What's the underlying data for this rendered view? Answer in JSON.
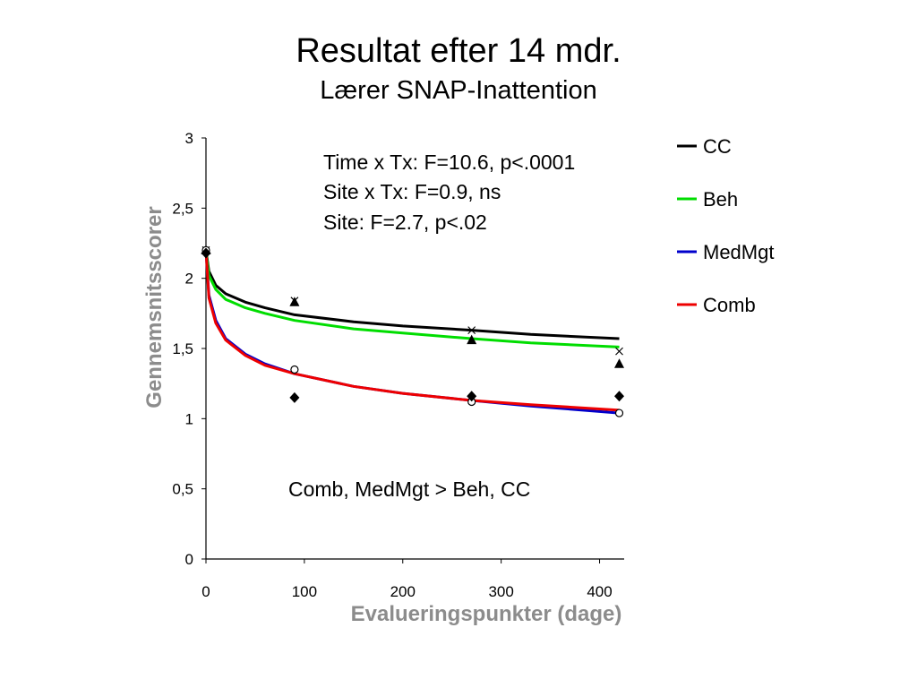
{
  "title": "Resultat efter 14 mdr.",
  "subtitle": "Lærer SNAP-Inattention",
  "chart_data": {
    "type": "line",
    "xlabel": "Evalueringspunkter (dage)",
    "ylabel": "Gennemsnitsscorer",
    "xlim": [
      0,
      425
    ],
    "ylim": [
      0,
      3
    ],
    "x_ticks": [
      0,
      100,
      200,
      300,
      400
    ],
    "y_ticks": [
      0,
      0.5,
      1,
      1.5,
      2,
      2.5,
      3
    ],
    "y_tick_labels": [
      "0",
      "0,5",
      "1",
      "1,5",
      "2",
      "2,5",
      "3"
    ],
    "grid": false,
    "legend_position": "right",
    "series": [
      {
        "name": "CC",
        "color": "#000000",
        "curve": {
          "x": [
            0,
            3,
            10,
            20,
            40,
            60,
            90,
            150,
            200,
            270,
            330,
            420
          ],
          "y": [
            2.2,
            2.05,
            1.95,
            1.89,
            1.83,
            1.79,
            1.74,
            1.69,
            1.66,
            1.63,
            1.6,
            1.57
          ]
        },
        "observed_marker": "x",
        "observed": {
          "x": [
            0,
            90,
            270,
            420
          ],
          "y": [
            2.2,
            1.84,
            1.63,
            1.48
          ]
        }
      },
      {
        "name": "Beh",
        "color": "#00dd00",
        "curve": {
          "x": [
            0,
            3,
            10,
            20,
            40,
            60,
            90,
            150,
            200,
            270,
            330,
            420
          ],
          "y": [
            2.2,
            2.02,
            1.92,
            1.85,
            1.79,
            1.75,
            1.7,
            1.64,
            1.61,
            1.57,
            1.54,
            1.51
          ]
        },
        "observed_marker": "triangle",
        "observed": {
          "x": [
            0,
            90,
            270,
            420
          ],
          "y": [
            2.2,
            1.83,
            1.56,
            1.39
          ]
        }
      },
      {
        "name": "MedMgt",
        "color": "#0000cc",
        "curve": {
          "x": [
            0,
            3,
            10,
            20,
            40,
            60,
            90,
            150,
            200,
            270,
            330,
            420
          ],
          "y": [
            2.2,
            1.88,
            1.7,
            1.57,
            1.46,
            1.39,
            1.32,
            1.23,
            1.18,
            1.13,
            1.09,
            1.04
          ]
        },
        "observed_marker": "circle",
        "observed": {
          "x": [
            0,
            90,
            270,
            420
          ],
          "y": [
            2.2,
            1.35,
            1.12,
            1.04
          ]
        }
      },
      {
        "name": "Comb",
        "color": "#ee0000",
        "curve": {
          "x": [
            0,
            3,
            10,
            20,
            40,
            60,
            90,
            150,
            200,
            270,
            330,
            420
          ],
          "y": [
            2.2,
            1.86,
            1.68,
            1.56,
            1.45,
            1.38,
            1.32,
            1.23,
            1.18,
            1.13,
            1.1,
            1.06
          ]
        },
        "observed_marker": "diamond",
        "observed": {
          "x": [
            0,
            90,
            270,
            420
          ],
          "y": [
            2.18,
            1.15,
            1.16,
            1.16
          ]
        }
      }
    ],
    "stats_annotations": [
      "Time x Tx: F=10.6, p<.0001",
      "Site x Tx: F=0.9, ns",
      "Site: F=2.7, p<.02"
    ],
    "comparison_annotation": "Comb, MedMgt  > Beh, CC"
  }
}
